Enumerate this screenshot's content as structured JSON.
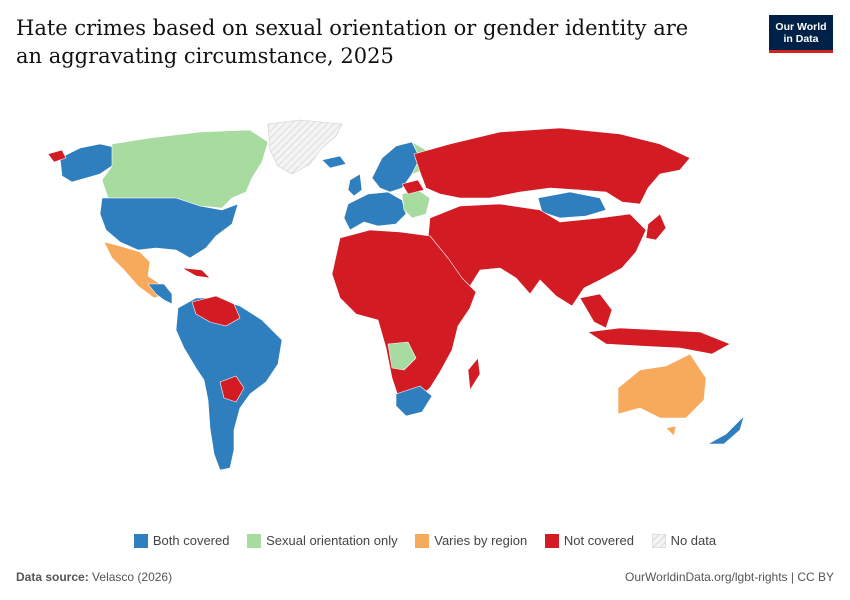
{
  "title": "Hate crimes based on sexual orientation or gender identity are an aggravating circumstance, 2025",
  "logo": {
    "line1": "Our World",
    "line2": "in Data"
  },
  "colors": {
    "both_covered": "#2f7fbf",
    "sexual_orientation_only": "#a8dba0",
    "varies_by_region": "#f7a95c",
    "not_covered": "#d31b23",
    "no_data": "#eeeeee"
  },
  "legend": [
    {
      "key": "both_covered",
      "label": "Both covered"
    },
    {
      "key": "sexual_orientation_only",
      "label": "Sexual orientation only"
    },
    {
      "key": "varies_by_region",
      "label": "Varies by region"
    },
    {
      "key": "not_covered",
      "label": "Not covered"
    },
    {
      "key": "no_data",
      "label": "No data"
    }
  ],
  "footer": {
    "source_label": "Data source:",
    "source_value": "Velasco (2026)",
    "url": "OurWorldinData.org/lgbt-rights | CC BY"
  }
}
